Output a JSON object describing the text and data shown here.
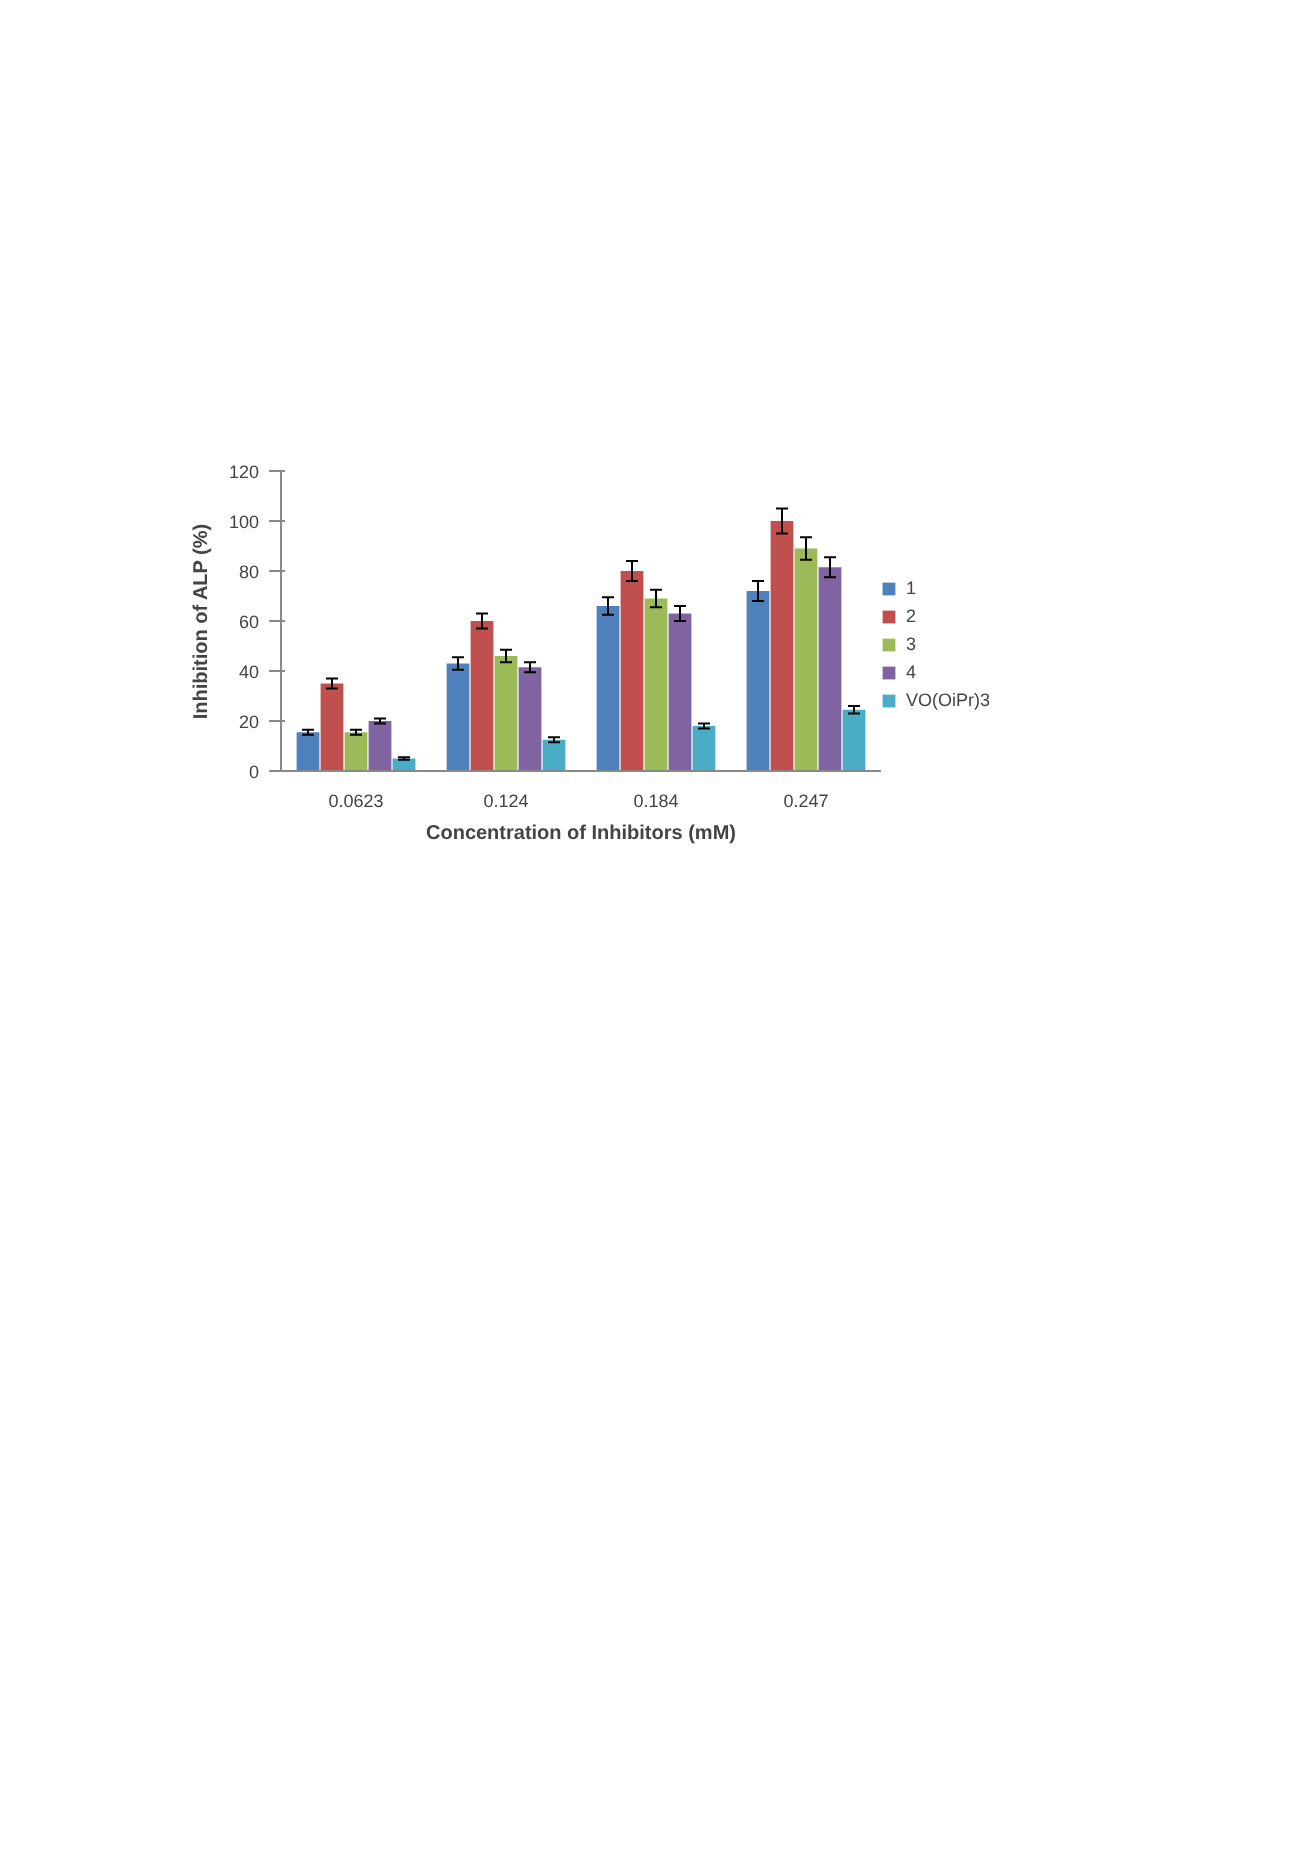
{
  "chart_data": {
    "type": "bar",
    "xlabel": "Concentration of Inhibitors (mM)",
    "ylabel": "Inhibition of ALP (%)",
    "categories": [
      "0.0623",
      "0.124",
      "0.184",
      "0.247"
    ],
    "series": [
      {
        "name": "1",
        "color": "#4f81bd",
        "values": [
          15.5,
          43,
          66,
          72
        ],
        "errors": [
          1,
          2.5,
          3.5,
          4
        ]
      },
      {
        "name": "2",
        "color": "#c0504d",
        "values": [
          35,
          60,
          80,
          100
        ],
        "errors": [
          2,
          3,
          4,
          5
        ]
      },
      {
        "name": "3",
        "color": "#9bbb59",
        "values": [
          15.5,
          46,
          69,
          89
        ],
        "errors": [
          1,
          2.5,
          3.5,
          4.5
        ]
      },
      {
        "name": "4",
        "color": "#8064a2",
        "values": [
          20,
          41.5,
          63,
          81.5
        ],
        "errors": [
          1,
          2,
          3,
          4
        ]
      },
      {
        "name": "VO(OiPr)3",
        "color": "#4bacc6",
        "values": [
          5,
          12.5,
          18,
          24.5
        ],
        "errors": [
          0.5,
          1,
          1,
          1.5
        ]
      }
    ],
    "ylim": [
      0,
      120
    ],
    "yticks": [
      0,
      20,
      40,
      60,
      80,
      100,
      120
    ],
    "grid": false,
    "legend": "right"
  }
}
